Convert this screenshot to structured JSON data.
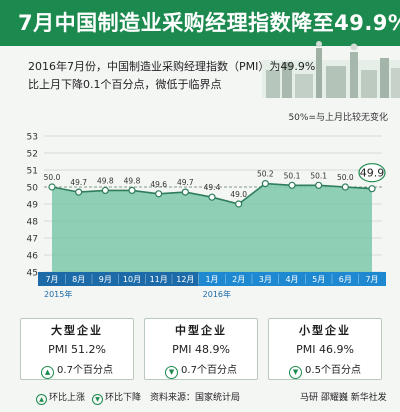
{
  "title": "7月中国制造业采购经理指数降至49.9%",
  "intro_line1": "2016年7月份，中国制造业采购经理指数（PMI）为49.9%",
  "intro_line2": "比上月下降0.1个百分点，微低于临界点",
  "note": "50%=与上月比较无变化",
  "colors": {
    "brand_green": "#1c8a4e",
    "area_fill": "#7bc8a9",
    "line": "#2e7d5b",
    "axis_band": "#1c6aa8",
    "axis_band_highlight": "#1e88d0"
  },
  "chart_data": {
    "type": "area",
    "title": "",
    "xlabel": "",
    "ylabel": "",
    "ylim": [
      45,
      53
    ],
    "yticks": [
      "45",
      "46",
      "47",
      "48",
      "49",
      "50",
      "51",
      "52",
      "53"
    ],
    "categories": [
      "7月",
      "8月",
      "9月",
      "10月",
      "11月",
      "12月",
      "1月",
      "2月",
      "3月",
      "4月",
      "5月",
      "6月",
      "7月"
    ],
    "values": [
      50.0,
      49.7,
      49.8,
      49.8,
      49.6,
      49.7,
      49.4,
      49.0,
      50.2,
      50.1,
      50.1,
      50.0,
      49.9
    ],
    "value_labels": [
      "50.0",
      "49.7",
      "49.8",
      "49.8",
      "49.6",
      "49.7",
      "49.4",
      "49.0",
      "50.2",
      "50.1",
      "50.1",
      "50.0",
      "49.9"
    ],
    "highlight_index": 12,
    "year_labels": [
      {
        "label": "2015年",
        "start_index": 0
      },
      {
        "label": "2016年",
        "start_index": 6
      }
    ],
    "grid": true
  },
  "cards": [
    {
      "title": "大型企业",
      "value": "PMI 51.2%",
      "direction": "up",
      "change": "0.7个百分点"
    },
    {
      "title": "中型企业",
      "value": "PMI 48.9%",
      "direction": "down",
      "change": "0.7个百分点"
    },
    {
      "title": "小型企业",
      "value": "PMI 46.9%",
      "direction": "down",
      "change": "0.5个百分点"
    }
  ],
  "footer": {
    "legend_up": "环比上涨",
    "legend_down": "环比下降",
    "source": "资料来源：国家统计局",
    "credit": "马研  邵耀巍  新华社发"
  }
}
